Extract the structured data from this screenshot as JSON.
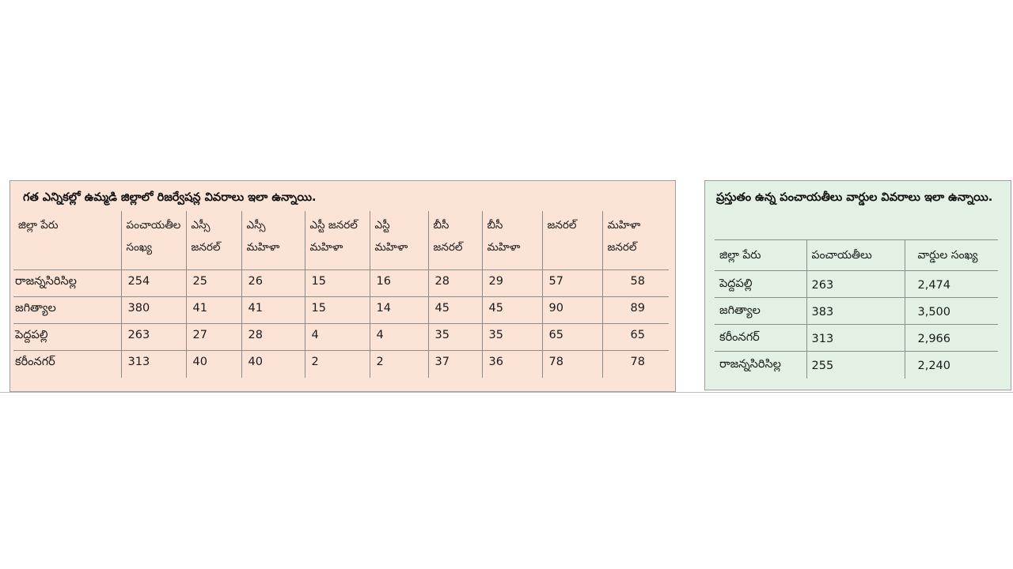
{
  "left_table": {
    "caption": "గత ఎన్నికల్లో ఉమ్మడి జిల్లాలో రిజర్వేషన్ల వివరాలు ఇలా ఉన్నాయి.",
    "headers": [
      [
        "జిల్లా పేరు",
        ""
      ],
      [
        "పంచాయతీల",
        "సంఖ్య"
      ],
      [
        "ఎస్సీ",
        "జనరల్"
      ],
      [
        "ఎస్సీ",
        "మహిళా"
      ],
      [
        "ఎస్టీ జనరల్",
        "మహిళా"
      ],
      [
        "ఎస్టీ",
        "మహిళా"
      ],
      [
        "బీసీ",
        "జనరల్"
      ],
      [
        "బీసీ",
        "మహిళా"
      ],
      [
        "జనరల్",
        ""
      ],
      [
        "మహిళా",
        "జనరల్"
      ]
    ],
    "rows": [
      [
        "రాజన్నసిరిసిల్ల",
        "254",
        "25",
        "26",
        "15",
        "16",
        "28",
        "29",
        "57",
        "58"
      ],
      [
        "జగిత్యాల",
        "380",
        "41",
        "41",
        "15",
        "14",
        "45",
        "45",
        "90",
        "89"
      ],
      [
        "పెద్దపల్లి",
        "263",
        "27",
        "28",
        "4",
        "4",
        "35",
        "35",
        "65",
        "65"
      ],
      [
        "కరీంనగర్",
        "313",
        "40",
        "40",
        "2",
        "2",
        "37",
        "36",
        "78",
        "78"
      ]
    ]
  },
  "right_table": {
    "caption": "ప్రస్తుతం ఉన్న పంచాయతీలు వార్డుల వివరాలు ఇలా ఉన్నాయి.",
    "headers": [
      "జిల్లా పేరు",
      "పంచాయతీలు",
      "వార్డుల సంఖ్య"
    ],
    "rows": [
      [
        "పెద్దపల్లి",
        "263",
        "2,474"
      ],
      [
        "జగిత్యాల",
        "383",
        "3,500"
      ],
      [
        "కరీంనగర్",
        "313",
        "2,966"
      ],
      [
        "రాజన్నసిరిసిల్ల",
        "255",
        "2,240"
      ]
    ]
  },
  "colors": {
    "left_bg": "#fbe4d6",
    "right_bg": "#e2f1e3",
    "grid": "#8c8c8c"
  }
}
